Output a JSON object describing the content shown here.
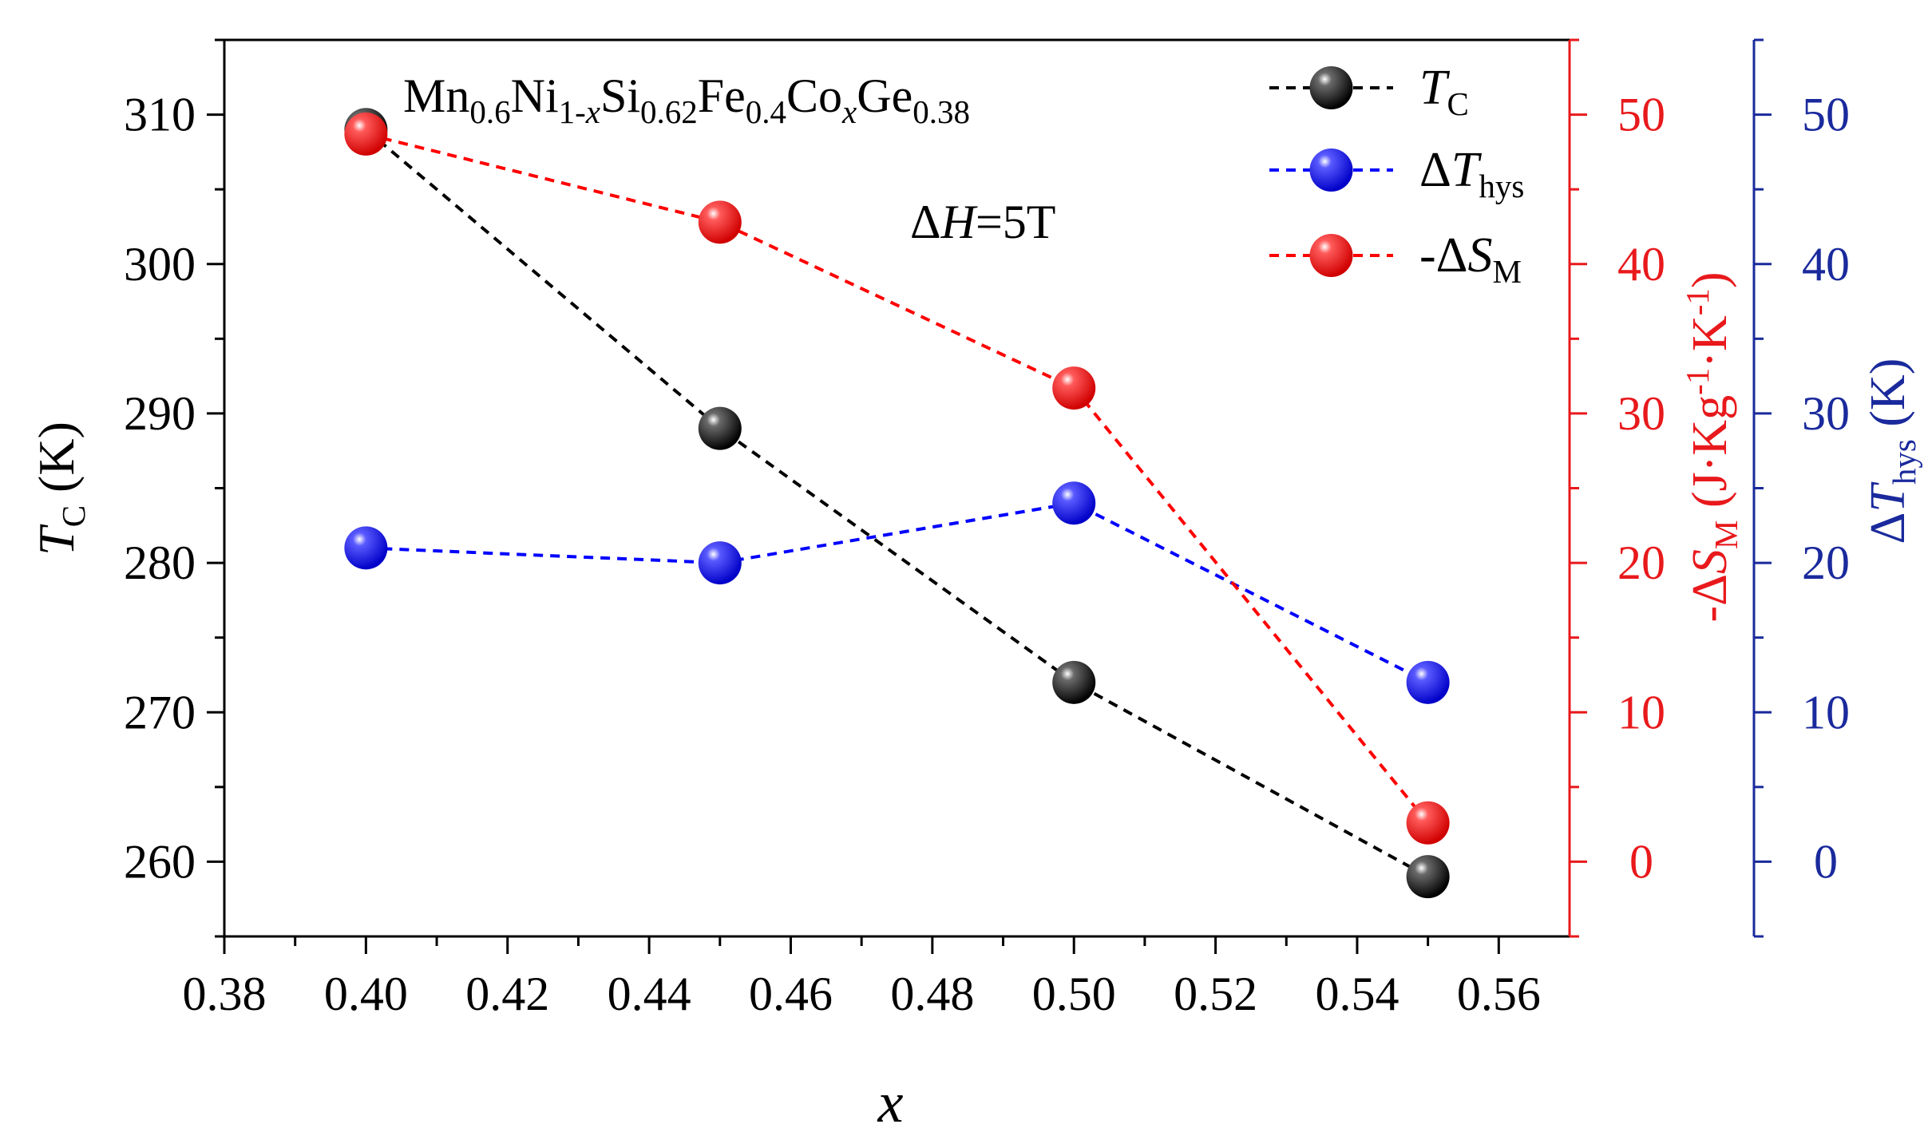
{
  "chart_data": {
    "type": "scatter",
    "title": "",
    "annotation_formula": {
      "parts": [
        {
          "t": "Mn"
        },
        {
          "t": "0.6",
          "sub": true
        },
        {
          "t": "Ni"
        },
        {
          "t": "1-",
          "sub": true
        },
        {
          "t": "x",
          "sub": true,
          "italic": true
        },
        {
          "t": "Si"
        },
        {
          "t": "0.62",
          "sub": true
        },
        {
          "t": "Fe"
        },
        {
          "t": "0.4",
          "sub": true
        },
        {
          "t": "Co"
        },
        {
          "t": "x",
          "sub": true,
          "italic": true
        },
        {
          "t": "Ge"
        },
        {
          "t": "0.38",
          "sub": true
        }
      ]
    },
    "annotation_field": {
      "parts": [
        {
          "t": "Δ"
        },
        {
          "t": "H",
          "italic": true
        },
        {
          "t": "=5T"
        }
      ]
    },
    "xlabel": "x",
    "xlim": [
      0.38,
      0.57
    ],
    "xticks": [
      "0.38",
      "0.40",
      "0.42",
      "0.44",
      "0.46",
      "0.48",
      "0.50",
      "0.52",
      "0.54",
      "0.56"
    ],
    "axes": {
      "left": {
        "label_parts": [
          {
            "t": "T",
            "italic": true
          },
          {
            "t": "C",
            "sub": true
          },
          {
            "t": " (K)"
          }
        ],
        "ylim": [
          255,
          315
        ],
        "ticks": [
          "260",
          "270",
          "280",
          "290",
          "300",
          "310"
        ],
        "color": "#000000"
      },
      "right1": {
        "label_parts": [
          {
            "t": "-Δ"
          },
          {
            "t": "S",
            "italic": true
          },
          {
            "t": "M",
            "sub": true
          },
          {
            "t": " (J·Kg"
          },
          {
            "t": "-1",
            "sup": true
          },
          {
            "t": "·K"
          },
          {
            "t": "-1",
            "sup": true
          },
          {
            "t": ")"
          }
        ],
        "ylim": [
          -5,
          55
        ],
        "ticks": [
          "0",
          "10",
          "20",
          "30",
          "40",
          "50"
        ],
        "color": "#e8191c"
      },
      "right2": {
        "label_parts": [
          {
            "t": "Δ"
          },
          {
            "t": "T",
            "italic": true
          },
          {
            "t": "hys",
            "sub": true
          },
          {
            "t": " (K)"
          }
        ],
        "ylim": [
          -5,
          55
        ],
        "ticks": [
          "0",
          "10",
          "20",
          "30",
          "40",
          "50"
        ],
        "color": "#1a2a9c"
      }
    },
    "series": [
      {
        "name": "TC",
        "legend_parts": [
          {
            "t": "T",
            "italic": true
          },
          {
            "t": "C",
            "sub": true
          }
        ],
        "axis": "left",
        "color": "#000000",
        "x": [
          0.4,
          0.45,
          0.5,
          0.55
        ],
        "y": [
          309,
          289,
          272,
          259
        ]
      },
      {
        "name": "ΔThys",
        "legend_parts": [
          {
            "t": "Δ"
          },
          {
            "t": "T",
            "italic": true
          },
          {
            "t": "hys",
            "sub": true
          }
        ],
        "axis": "right2",
        "color": "#0000ff",
        "x": [
          0.4,
          0.45,
          0.5,
          0.55
        ],
        "y": [
          21,
          20,
          24,
          12
        ]
      },
      {
        "name": "-ΔSM",
        "legend_parts": [
          {
            "t": "-Δ"
          },
          {
            "t": "S",
            "italic": true
          },
          {
            "t": "M",
            "sub": true
          }
        ],
        "axis": "right1",
        "color": "#ff0000",
        "x": [
          0.4,
          0.45,
          0.5,
          0.55
        ],
        "y": [
          48.7,
          42.8,
          31.7,
          2.6
        ]
      }
    ]
  }
}
